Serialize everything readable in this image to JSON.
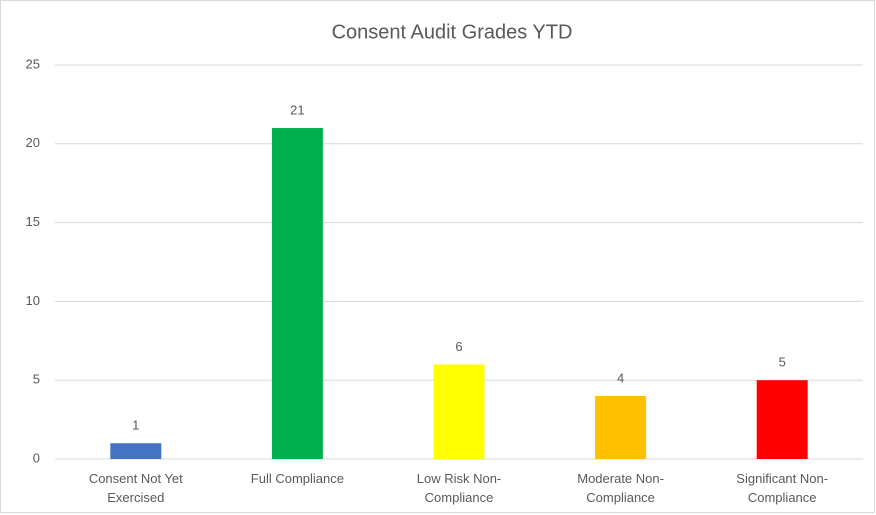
{
  "chart_data": {
    "type": "bar",
    "title": "Consent Audit Grades YTD",
    "categories": [
      "Consent Not Yet Exercised",
      "Full Compliance",
      "Low Risk Non-Compliance",
      "Moderate Non-Compliance",
      "Significant Non-Compliance"
    ],
    "values": [
      1,
      21,
      6,
      4,
      5
    ],
    "colors": [
      "#4472c4",
      "#00b050",
      "#ffff00",
      "#ffc000",
      "#ff0000"
    ],
    "ylim": [
      0,
      25
    ],
    "yticks": [
      0,
      5,
      10,
      15,
      20,
      25
    ],
    "grid": true
  }
}
